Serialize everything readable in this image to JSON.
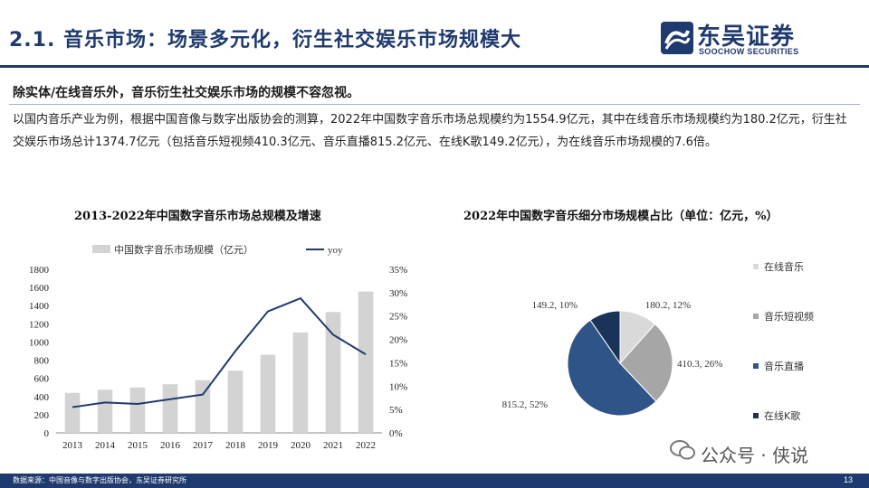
{
  "header": {
    "title": "2.1. 音乐市场：场景多元化，衍生社交娱乐市场规模大",
    "logo_cn": "东吴证券",
    "logo_en": "SOOCHOW SECURITIES"
  },
  "subheading": "除实体/在线音乐外，音乐衍生社交娱乐市场的规模不容忽视。",
  "body_text": "以国内音乐产业为例，根据中国音像与数字出版协会的测算，2022年中国数字音乐市场总规模约为1554.9亿元，其中在线音乐市场规模约为180.2亿元，衍生社交娱乐市场总计1374.7亿元（包括音乐短视频410.3亿元、音乐直播815.2亿元、在线K歌149.2亿元），为在线音乐市场规模的7.6倍。",
  "chart_left_title": "2013-2022年中国数字音乐市场总规模及增速",
  "chart_right_title": "2022年中国数字音乐细分市场规模占比（单位：亿元，%）",
  "chart_data": [
    {
      "type": "bar",
      "title": "2013-2022年中国数字音乐市场总规模及增速",
      "categories": [
        "2013",
        "2014",
        "2015",
        "2016",
        "2017",
        "2018",
        "2019",
        "2020",
        "2021",
        "2022"
      ],
      "series": [
        {
          "name": "中国数字音乐市场规模（亿元）",
          "type": "bar",
          "axis": "left",
          "values": [
            440,
            475,
            500,
            535,
            580,
            685,
            860,
            1105,
            1330,
            1555
          ]
        },
        {
          "name": "yoy",
          "type": "line",
          "axis": "right",
          "values": [
            5.5,
            6.5,
            6.2,
            7.2,
            8.2,
            17.5,
            26.0,
            28.8,
            21.0,
            16.8
          ]
        }
      ],
      "left_ticks": [
        "0",
        "200",
        "400",
        "600",
        "800",
        "1000",
        "1200",
        "1400",
        "1600",
        "1800"
      ],
      "right_ticks": [
        "0%",
        "5%",
        "10%",
        "15%",
        "20%",
        "25%",
        "30%",
        "35%"
      ],
      "ylim_left": [
        0,
        1800
      ],
      "ylim_right": [
        0,
        35
      ],
      "legend_position": "top",
      "grid": false,
      "colors": {
        "bar": "#d3d3d3",
        "line": "#1f3a6e"
      }
    },
    {
      "type": "pie",
      "title": "2022年中国数字音乐细分市场规模占比（单位：亿元，%）",
      "slices": [
        {
          "name": "在线音乐",
          "value": 180.2,
          "percent": 12,
          "label": "180.2, 12%",
          "color": "#d9d9d9"
        },
        {
          "name": "音乐短视频",
          "value": 410.3,
          "percent": 26,
          "label": "410.3, 26%",
          "color": "#a6a6a6"
        },
        {
          "name": "音乐直播",
          "value": 815.2,
          "percent": 52,
          "label": "815.2, 52%",
          "color": "#2f5487"
        },
        {
          "name": "在线K歌",
          "value": 149.2,
          "percent": 10,
          "label": "149.2, 10%",
          "color": "#1a3358"
        }
      ],
      "legend_position": "right"
    }
  ],
  "footer": {
    "source": "数据来源：中国音像与数字出版协会，东吴证券研究所",
    "page": "13"
  },
  "watermark": "公众号 · 侠说"
}
